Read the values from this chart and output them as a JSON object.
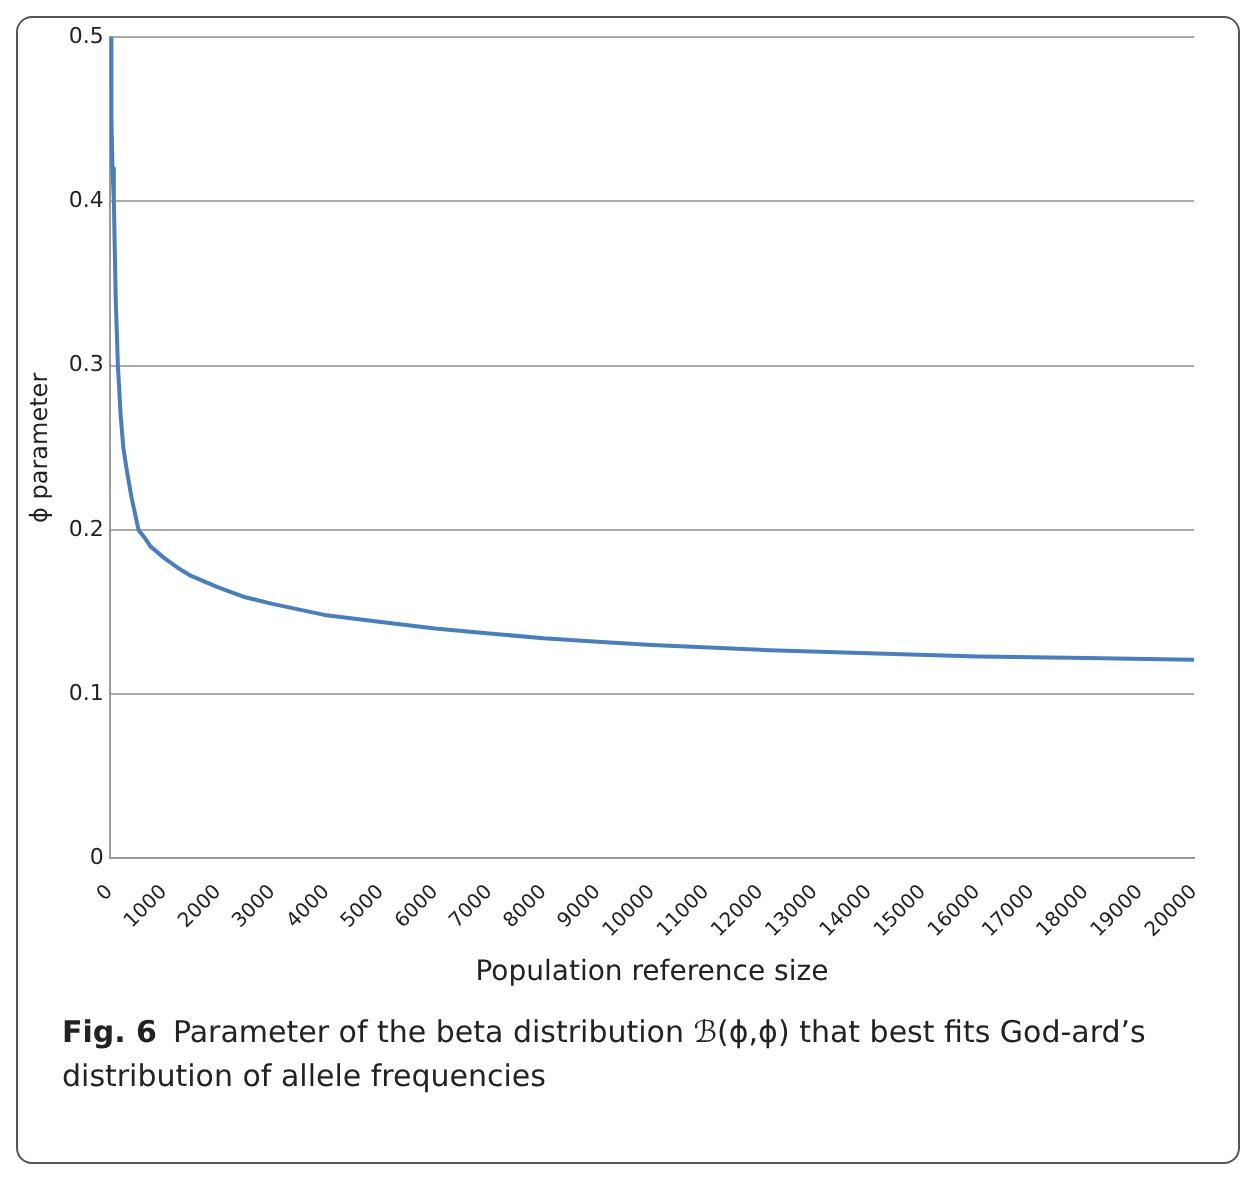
{
  "chart_data": {
    "type": "line",
    "xlabel": "Population reference size",
    "ylabel": "ϕ parameter",
    "annotations": [
      "Fig. 6",
      "Parameter of the beta distribution ℬ(ϕ,ϕ) that best fits God-ard’s distribution of allele frequencies"
    ],
    "series": [
      {
        "color": "#4a7ebb",
        "x": [
          10,
          30,
          50,
          75,
          110,
          150,
          200,
          250,
          320,
          400,
          530,
          650,
          750,
          1000,
          1250,
          1500,
          2000,
          2500,
          3000,
          4000,
          5000,
          6000,
          7000,
          8000,
          9000,
          10000,
          12000,
          14000,
          16000,
          18000,
          20000
        ],
        "values": [
          0.5,
          0.45,
          0.42,
          0.4,
          0.34,
          0.3,
          0.27,
          0.25,
          0.235,
          0.22,
          0.2,
          0.195,
          0.19,
          0.183,
          0.177,
          0.172,
          0.165,
          0.159,
          0.155,
          0.148,
          0.144,
          0.14,
          0.137,
          0.134,
          0.132,
          0.13,
          0.127,
          0.125,
          0.123,
          0.122,
          0.121
        ]
      }
    ],
    "xlim": [
      0,
      20000
    ],
    "xticks": [
      0,
      1000,
      2000,
      3000,
      4000,
      5000,
      6000,
      7000,
      8000,
      9000,
      10000,
      11000,
      12000,
      13000,
      14000,
      15000,
      16000,
      17000,
      18000,
      19000,
      20000
    ],
    "ylim": [
      0,
      0.5
    ],
    "yticks": [
      0,
      0.1,
      0.2,
      0.3,
      0.4,
      0.5
    ],
    "grid": "y",
    "legend": false,
    "marker": "none",
    "line_style": "solid"
  }
}
